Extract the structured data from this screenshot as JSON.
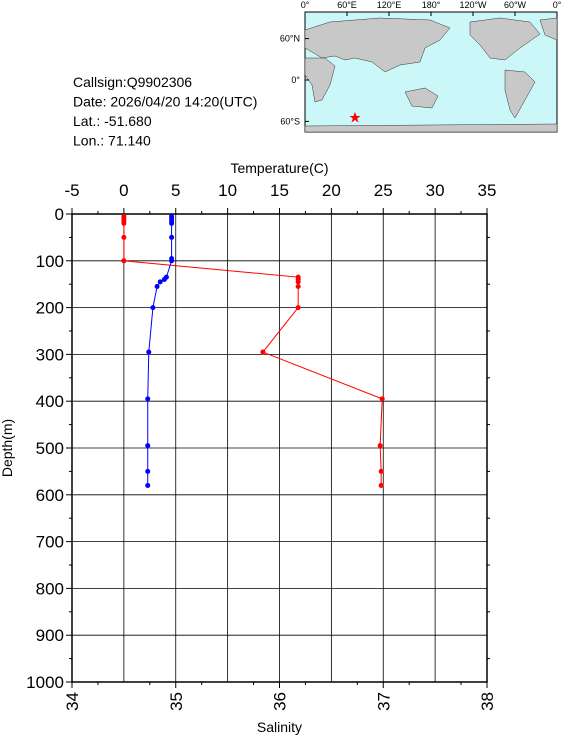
{
  "info": [
    "Callsign:Q9902306",
    "Date:  2026/04/20 14:20(UTC)",
    "Lat.:  -51.680",
    "Lon.:  71.140"
  ],
  "map": {
    "lon_ticks": [
      {
        "value": 0,
        "label": "0°"
      },
      {
        "value": 60,
        "label": "60°E"
      },
      {
        "value": 120,
        "label": "120°E"
      },
      {
        "value": 180,
        "label": "180°"
      },
      {
        "value": 240,
        "label": "120°W"
      },
      {
        "value": 300,
        "label": "60°W"
      },
      {
        "value": 360,
        "label": "0°"
      }
    ],
    "lat_ticks": [
      {
        "value": 60,
        "label": "60°N"
      },
      {
        "value": 0,
        "label": "0°"
      },
      {
        "value": -60,
        "label": "60°S"
      }
    ]
  },
  "chart_data": {
    "type": "line",
    "xlabel": "Temperature(C)",
    "x2label": "Salinity",
    "ylabel": "Depth(m)",
    "xlim": [
      -5,
      35
    ],
    "xticks": [
      -5,
      0,
      5,
      10,
      15,
      20,
      25,
      30,
      35
    ],
    "x2lim": [
      34,
      38
    ],
    "x2ticks": [
      34,
      35,
      36,
      37,
      38
    ],
    "ylim": [
      0,
      1000
    ],
    "yticks": [
      0,
      100,
      200,
      300,
      400,
      500,
      600,
      700,
      800,
      900,
      1000
    ],
    "y_inverted": true,
    "grid": true,
    "series": [
      {
        "color": "#ff0000",
        "axis": "x",
        "y": [
          5,
          10,
          15,
          20,
          50,
          100,
          135,
          140,
          145,
          155,
          200,
          295,
          395,
          495,
          550,
          580
        ],
        "x": [
          0.0,
          0.0,
          0.0,
          0.0,
          0.0,
          0.0,
          16.8,
          16.8,
          16.8,
          16.8,
          16.8,
          13.4,
          24.9,
          24.7,
          24.8,
          24.8
        ]
      },
      {
        "color": "#0000ff",
        "axis": "x2",
        "y": [
          5,
          10,
          15,
          20,
          50,
          95,
          100,
          135,
          140,
          145,
          155,
          200,
          295,
          395,
          495,
          550,
          580
        ],
        "x": [
          34.96,
          34.96,
          34.96,
          34.96,
          34.96,
          34.96,
          34.96,
          34.91,
          34.89,
          34.85,
          34.82,
          34.78,
          34.74,
          34.73,
          34.73,
          34.73,
          34.73
        ]
      }
    ]
  }
}
